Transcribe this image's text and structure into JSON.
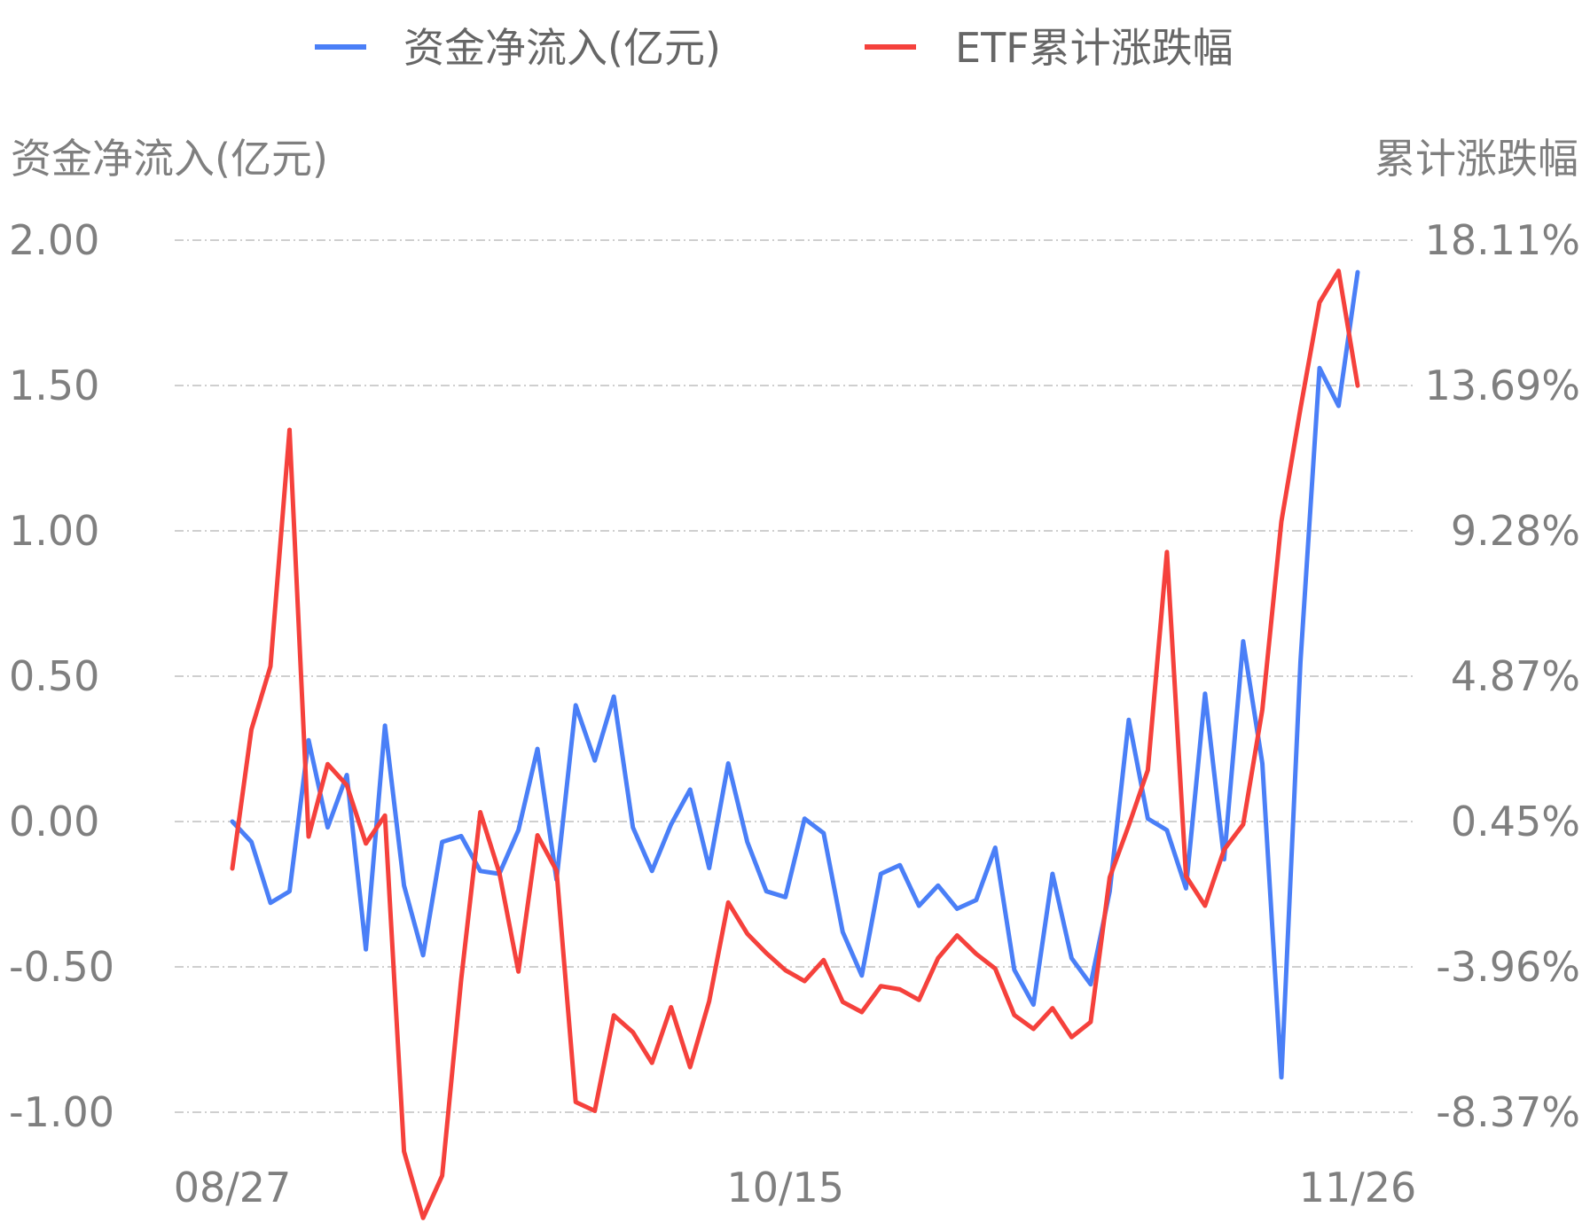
{
  "legend": [
    {
      "label": "资金净流入(亿元)",
      "color": "#4a7ff7"
    },
    {
      "label": "ETF累计涨跌幅",
      "color": "#f5413c"
    }
  ],
  "chart_data": {
    "type": "line",
    "left_axis_title": "资金净流入(亿元)",
    "right_axis_title": "累计涨跌幅",
    "left_ticks": [
      "2.00",
      "1.50",
      "1.00",
      "0.50",
      "0.00",
      "-0.50",
      "-1.00"
    ],
    "right_ticks": [
      "18.11%",
      "13.69%",
      "9.28%",
      "4.87%",
      "0.45%",
      "-3.96%",
      "-8.37%"
    ],
    "x_tick_labels": [
      "08/27",
      "10/15",
      "11/26"
    ],
    "x_tick_index": [
      0,
      29,
      59
    ],
    "ylim_left": [
      -1.0,
      2.0
    ],
    "ylim_right": [
      -8.37,
      18.11
    ],
    "grid": true,
    "legend_position": "top-center",
    "series": [
      {
        "name": "资金净流入(亿元)",
        "axis": "left",
        "color": "#4a7ff7",
        "values": [
          0.0,
          -0.07,
          -0.28,
          -0.24,
          0.28,
          -0.02,
          0.16,
          -0.44,
          0.33,
          -0.22,
          -0.46,
          -0.07,
          -0.05,
          -0.17,
          -0.18,
          -0.03,
          0.25,
          -0.2,
          0.4,
          0.21,
          0.43,
          -0.02,
          -0.17,
          -0.01,
          0.11,
          -0.16,
          0.2,
          -0.07,
          -0.24,
          -0.26,
          0.01,
          -0.04,
          -0.38,
          -0.53,
          -0.18,
          -0.15,
          -0.29,
          -0.22,
          -0.3,
          -0.27,
          -0.09,
          -0.51,
          -0.63,
          -0.18,
          -0.47,
          -0.56,
          -0.24,
          0.35,
          0.01,
          -0.03,
          -0.23,
          0.44,
          -0.13,
          0.62,
          0.2,
          -0.88,
          0.55,
          1.56,
          1.43,
          1.89
        ]
      },
      {
        "name": "ETF累计涨跌幅",
        "axis": "right",
        "color": "#f5413c",
        "values": [
          -0.97,
          3.25,
          5.17,
          12.35,
          0.0,
          2.2,
          1.56,
          -0.21,
          0.64,
          -9.56,
          -11.58,
          -10.3,
          -4.33,
          0.74,
          -1.1,
          -4.1,
          0.04,
          -1.04,
          -8.06,
          -8.33,
          -5.43,
          -5.94,
          -6.87,
          -5.18,
          -7.0,
          -5.0,
          -2.0,
          -2.95,
          -3.54,
          -4.06,
          -4.39,
          -3.75,
          -5.02,
          -5.33,
          -4.54,
          -4.64,
          -4.96,
          -3.69,
          -3.0,
          -3.56,
          -4.01,
          -5.42,
          -5.84,
          -5.21,
          -6.09,
          -5.63,
          -1.24,
          0.34,
          2.02,
          8.64,
          -1.2,
          -2.1,
          -0.4,
          0.37,
          3.85,
          9.57,
          13.0,
          16.22,
          17.18,
          13.69
        ]
      }
    ]
  }
}
